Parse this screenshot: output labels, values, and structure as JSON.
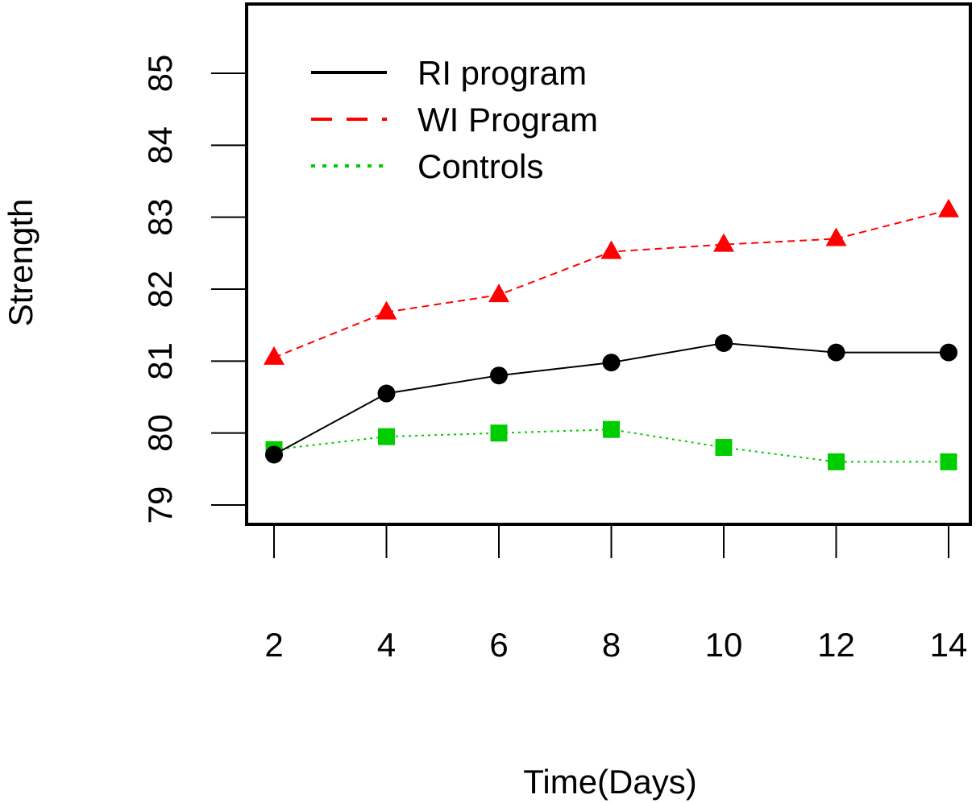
{
  "chart_data": {
    "type": "line",
    "title": "",
    "xlabel": "Time(Days)",
    "ylabel": "Strength",
    "x": [
      2,
      4,
      6,
      8,
      10,
      12,
      14
    ],
    "x_tick_labels": [
      "2",
      "4",
      "6",
      "8",
      "10",
      "12",
      "14"
    ],
    "y_ticks": [
      79,
      80,
      81,
      82,
      83,
      84,
      85
    ],
    "y_tick_labels": [
      "79",
      "80",
      "81",
      "82",
      "83",
      "84",
      "85"
    ],
    "xlim": [
      2,
      14
    ],
    "ylim": [
      79,
      85
    ],
    "grid": false,
    "legend_position": "top-left",
    "series": [
      {
        "name": "RI program",
        "values": [
          79.7,
          80.55,
          80.8,
          80.98,
          81.25,
          81.12,
          81.12
        ],
        "color": "#000000",
        "line_style": "solid",
        "marker": "circle"
      },
      {
        "name": "WI Program",
        "values": [
          81.05,
          81.68,
          81.92,
          82.52,
          82.62,
          82.7,
          83.1
        ],
        "color": "#ff0000",
        "line_style": "dashed",
        "marker": "triangle"
      },
      {
        "name": "Controls",
        "values": [
          79.77,
          79.95,
          80.0,
          80.05,
          79.8,
          79.6,
          79.6
        ],
        "color": "#00cd00",
        "line_style": "dotted",
        "marker": "square"
      }
    ]
  }
}
